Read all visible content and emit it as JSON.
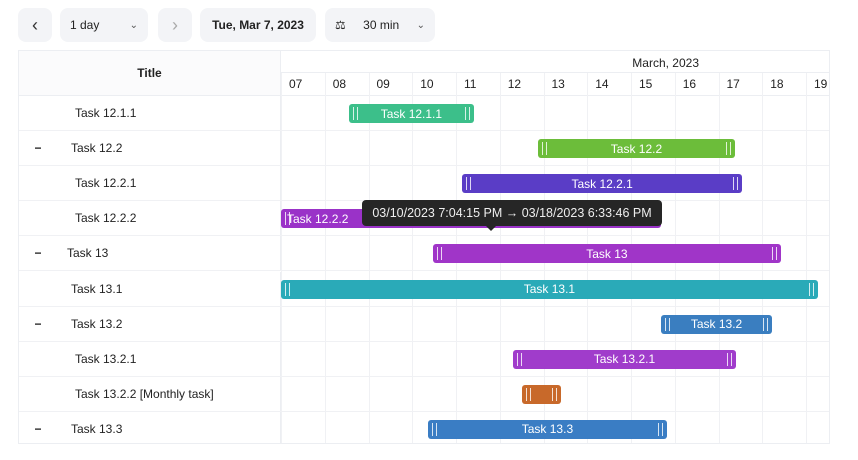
{
  "toolbar": {
    "prev_icon": "chevron-left-icon",
    "range": "1 day",
    "next_icon": "chevron-right-icon",
    "date": "Tue, Mar 7, 2023",
    "step_icon": "scale-icon",
    "step": "30 min"
  },
  "header": {
    "title": "Title",
    "month": "March, 2023",
    "days": [
      "07",
      "08",
      "09",
      "10",
      "11",
      "12",
      "13",
      "14",
      "15",
      "16",
      "17",
      "18",
      "19"
    ]
  },
  "tasks": [
    {
      "title": "Task 12.1.1",
      "indent": 2,
      "collapsible": false,
      "start_day": 8.55,
      "end_day": 11.41,
      "color": "#3cbf8a"
    },
    {
      "title": "Task 12.2",
      "indent": 1,
      "collapsible": true,
      "start_day": 12.87,
      "end_day": 17.38,
      "color": "#6cbd3a"
    },
    {
      "title": "Task 12.2.1",
      "indent": 2,
      "collapsible": false,
      "start_day": 11.14,
      "end_day": 17.54,
      "color": "#5a3dc6"
    },
    {
      "title": "Task 12.2.2",
      "indent": 2,
      "collapsible": false,
      "start_day": 7,
      "end_day": 15.69,
      "color": "#9a32c8",
      "label": "Task 12.2.2"
    },
    {
      "title": "Task 13",
      "indent": 0,
      "collapsible": true,
      "start_day": 10.47,
      "end_day": 18.43,
      "color": "#a035c8"
    },
    {
      "title": "Task 13.1",
      "indent": 1,
      "collapsible": false,
      "start_day": 7,
      "end_day": 19.27,
      "color": "#2aaab8"
    },
    {
      "title": "Task 13.2",
      "indent": 1,
      "collapsible": true,
      "start_day": 15.69,
      "end_day": 18.22,
      "color": "#3a7ec0"
    },
    {
      "title": "Task 13.2.1",
      "indent": 2,
      "collapsible": false,
      "start_day": 12.3,
      "end_day": 17.4,
      "color": "#a03ccb"
    },
    {
      "title": "Task 13.2.2 [Monthly task]",
      "indent": 2,
      "collapsible": false,
      "start_day": 12.5,
      "end_day": 13.4,
      "color": "#c8692a",
      "label": ""
    },
    {
      "title": "Task 13.3",
      "indent": 1,
      "collapsible": true,
      "start_day": 10.36,
      "end_day": 15.82,
      "color": "#3a7dc4"
    }
  ],
  "collapse_symbol": "−",
  "tooltip": "03/10/2023 7:04:15 PM → 03/18/2023 6:33:46 PM"
}
